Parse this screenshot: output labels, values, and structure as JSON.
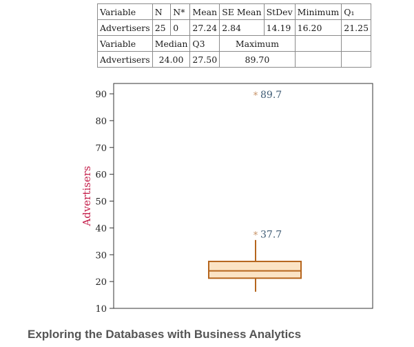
{
  "stats_table": {
    "rows": [
      [
        "Variable",
        "N",
        "N*",
        "Mean",
        "SE Mean",
        "StDev",
        "Minimum",
        "Q₁"
      ],
      [
        "Advertisers",
        "25",
        "0",
        "27.24",
        "2.84",
        "14.19",
        "16.20",
        "21.25"
      ],
      [
        "Variable",
        "Median",
        "Q3",
        "",
        "Maximum",
        "",
        "",
        ""
      ],
      [
        "Advertisers",
        "24.00",
        "27.50",
        "",
        "89.70",
        "",
        "",
        ""
      ]
    ]
  },
  "chart_data": {
    "type": "boxplot",
    "ylabel": "Advertisers",
    "ylim": [
      10,
      93
    ],
    "yticks": [
      10,
      20,
      30,
      40,
      50,
      60,
      70,
      80,
      90
    ],
    "box": {
      "whisker_low": 16.2,
      "q1": 21.25,
      "median": 24.0,
      "q3": 27.5,
      "whisker_high": 35.5
    },
    "outliers": [
      {
        "value": 89.7,
        "label": "89.7"
      },
      {
        "value": 37.7,
        "label": "37.7"
      }
    ],
    "colors": {
      "box": "#b5651d",
      "box_fill": "#fbe3c4",
      "outlier": "#c8956a",
      "outlier_label": "#3d5a73",
      "ylabel": "#c41e4a",
      "axis": "#333333"
    }
  },
  "section_heading": "Exploring the Databases with Business Analytics"
}
